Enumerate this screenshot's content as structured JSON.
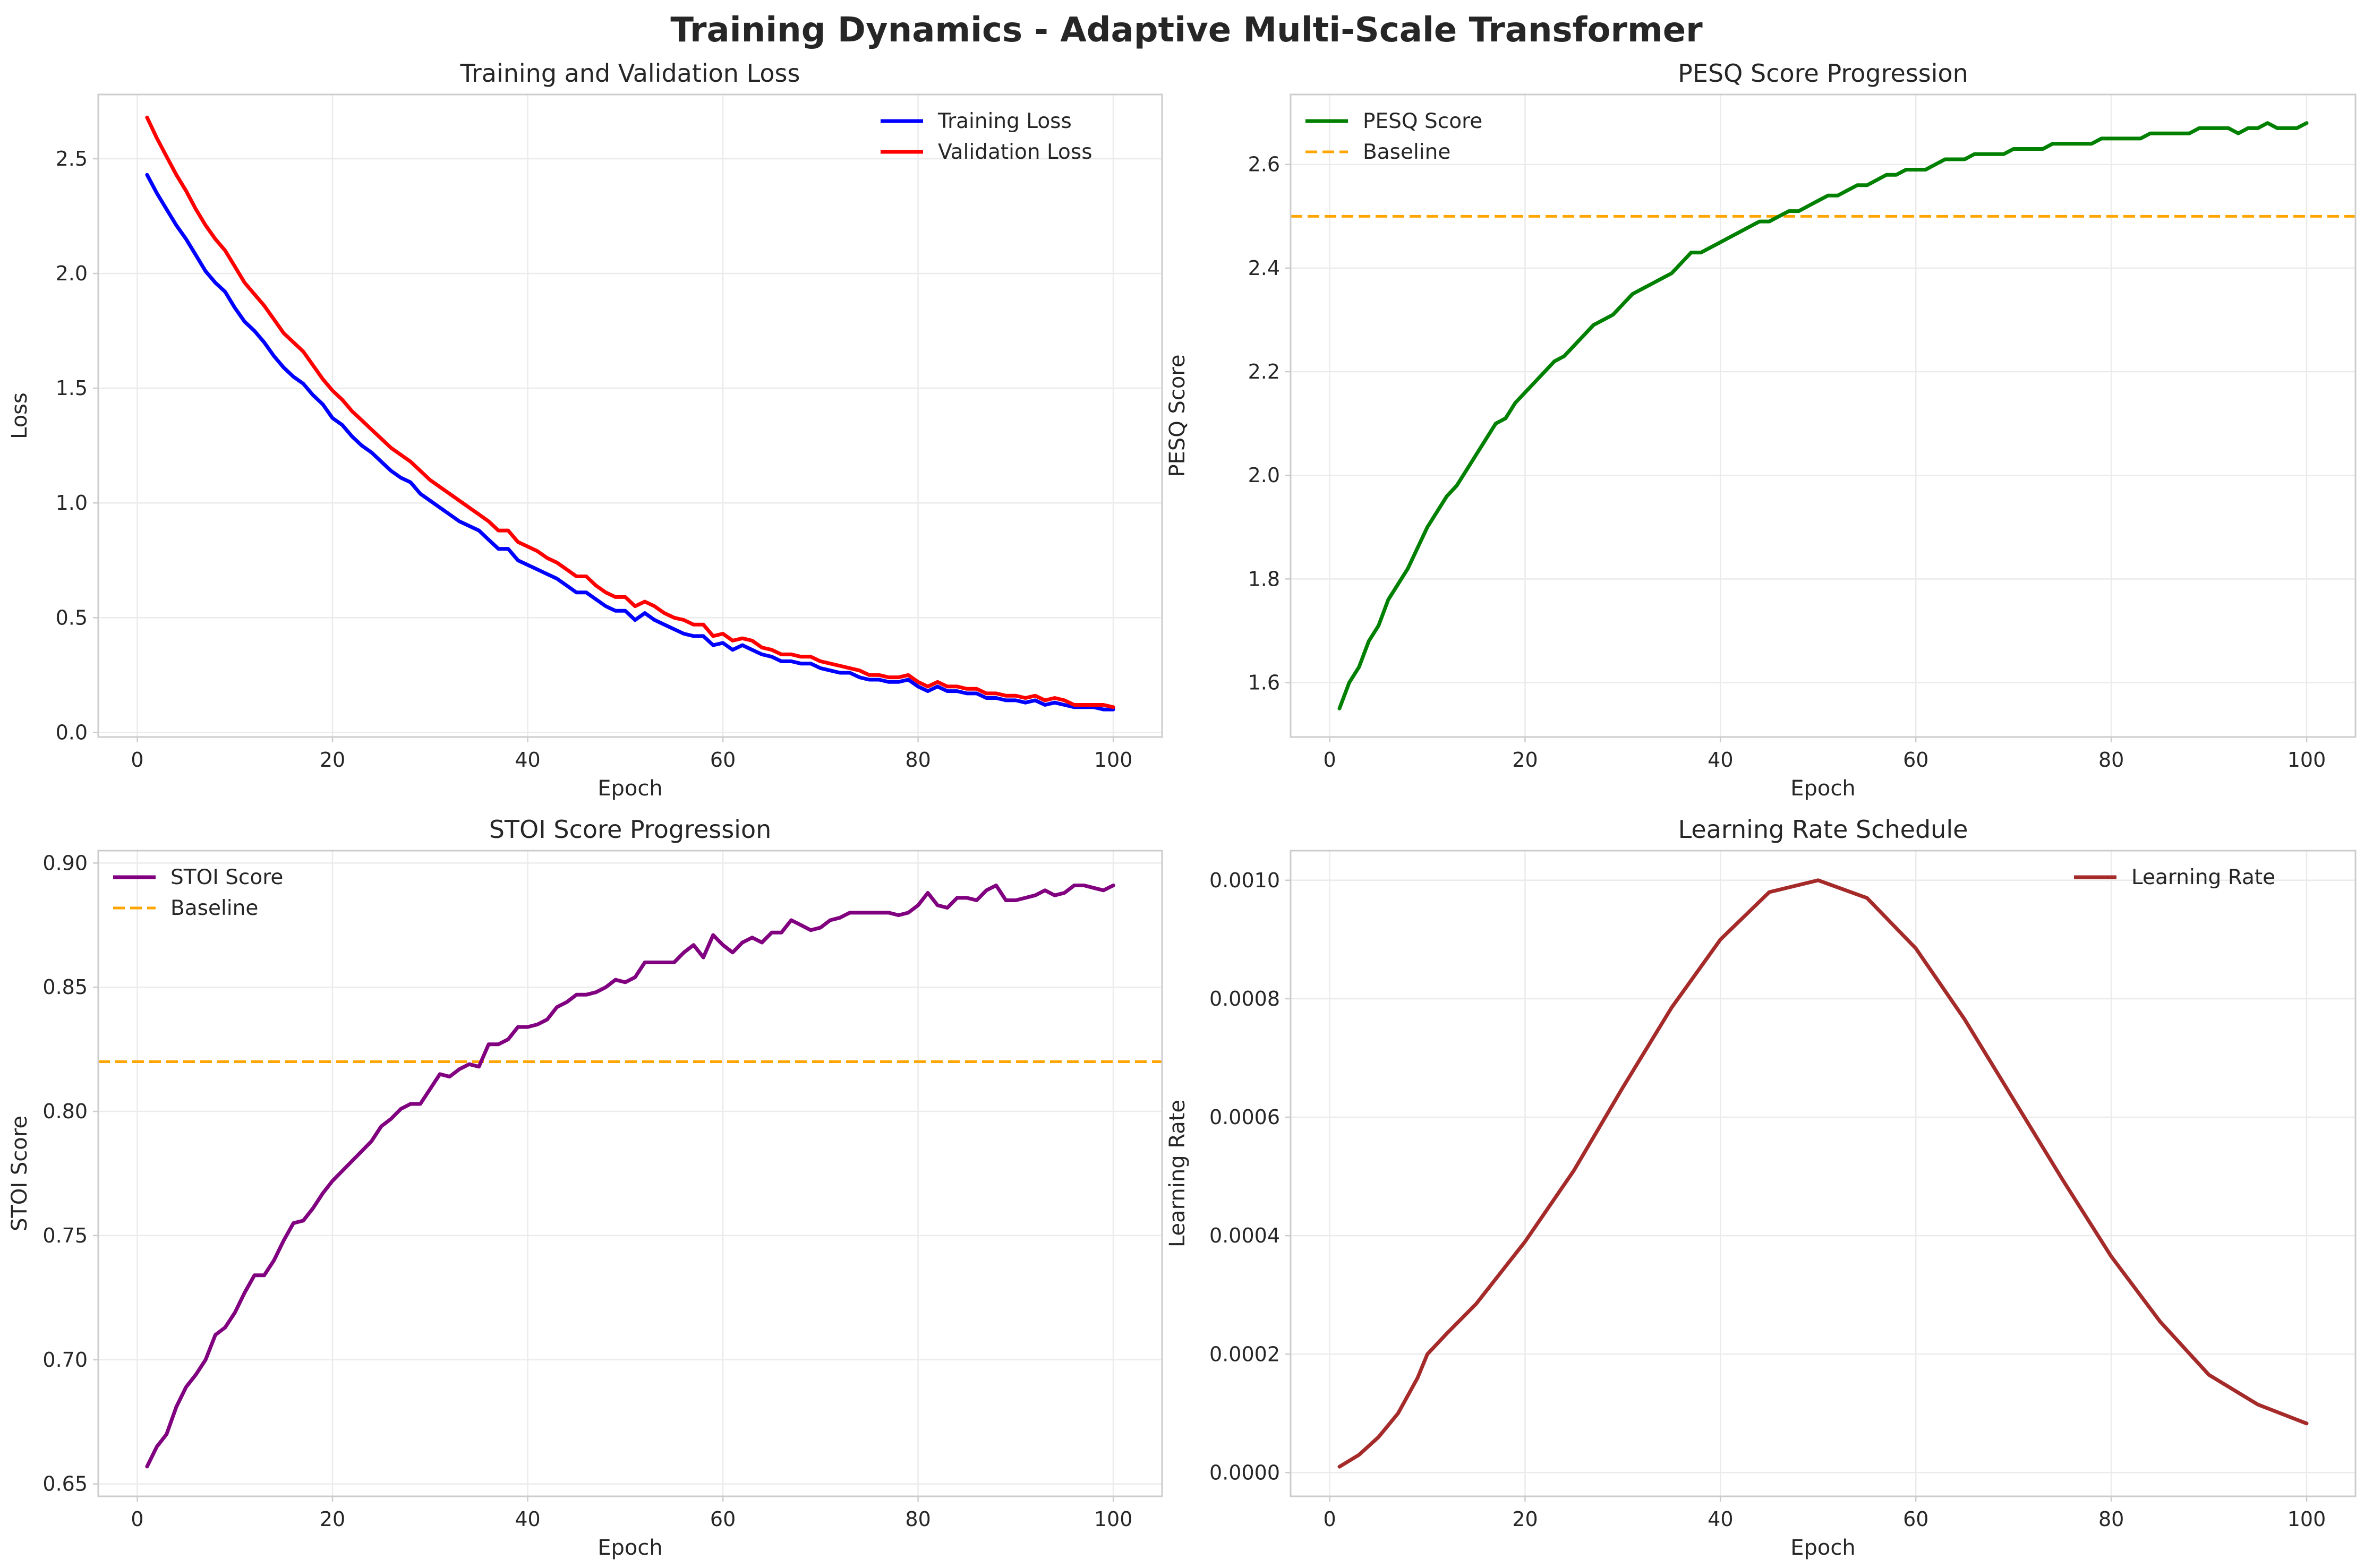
{
  "figure": {
    "suptitle": "Training Dynamics - Adaptive Multi-Scale Transformer",
    "colors": {
      "training_loss": "#0000ff",
      "validation_loss": "#ff0000",
      "pesq": "#008000",
      "stoi": "#800080",
      "baseline": "#ffa500",
      "learning_rate": "#a52a2a"
    }
  },
  "chart_data": [
    {
      "id": "loss",
      "type": "line",
      "title": "Training and Validation Loss",
      "xlabel": "Epoch",
      "ylabel": "Loss",
      "xlim": [
        -4,
        105
      ],
      "ylim": [
        -0.02,
        2.78
      ],
      "xticks": [
        0,
        20,
        40,
        60,
        80,
        100
      ],
      "yticks": [
        0.0,
        0.5,
        1.0,
        1.5,
        2.0,
        2.5
      ],
      "ytick_labels": [
        "0.0",
        "0.5",
        "1.0",
        "1.5",
        "2.0",
        "2.5"
      ],
      "legend_position": "top-right",
      "grid": true,
      "series": [
        {
          "name": "Training Loss",
          "color": "#0000ff",
          "x_start": 1,
          "x_step": 1,
          "values": [
            2.43,
            2.35,
            2.28,
            2.21,
            2.15,
            2.08,
            2.01,
            1.96,
            1.92,
            1.85,
            1.79,
            1.75,
            1.7,
            1.64,
            1.59,
            1.55,
            1.52,
            1.47,
            1.43,
            1.37,
            1.34,
            1.29,
            1.25,
            1.22,
            1.18,
            1.14,
            1.11,
            1.09,
            1.04,
            1.01,
            0.98,
            0.95,
            0.92,
            0.9,
            0.88,
            0.84,
            0.8,
            0.8,
            0.75,
            0.73,
            0.71,
            0.69,
            0.67,
            0.64,
            0.61,
            0.61,
            0.58,
            0.55,
            0.53,
            0.53,
            0.49,
            0.52,
            0.49,
            0.47,
            0.45,
            0.43,
            0.42,
            0.42,
            0.38,
            0.39,
            0.36,
            0.38,
            0.36,
            0.34,
            0.33,
            0.31,
            0.31,
            0.3,
            0.3,
            0.28,
            0.27,
            0.26,
            0.26,
            0.24,
            0.23,
            0.23,
            0.22,
            0.22,
            0.23,
            0.2,
            0.18,
            0.2,
            0.18,
            0.18,
            0.17,
            0.17,
            0.15,
            0.15,
            0.14,
            0.14,
            0.13,
            0.14,
            0.12,
            0.13,
            0.12,
            0.11,
            0.11,
            0.11,
            0.1,
            0.1
          ]
        },
        {
          "name": "Validation Loss",
          "color": "#ff0000",
          "x_start": 1,
          "x_step": 1,
          "values": [
            2.68,
            2.59,
            2.51,
            2.43,
            2.36,
            2.28,
            2.21,
            2.15,
            2.1,
            2.03,
            1.96,
            1.91,
            1.86,
            1.8,
            1.74,
            1.7,
            1.66,
            1.6,
            1.54,
            1.49,
            1.45,
            1.4,
            1.36,
            1.32,
            1.28,
            1.24,
            1.21,
            1.18,
            1.14,
            1.1,
            1.07,
            1.04,
            1.01,
            0.98,
            0.95,
            0.92,
            0.88,
            0.88,
            0.83,
            0.81,
            0.79,
            0.76,
            0.74,
            0.71,
            0.68,
            0.68,
            0.64,
            0.61,
            0.59,
            0.59,
            0.55,
            0.57,
            0.55,
            0.52,
            0.5,
            0.49,
            0.47,
            0.47,
            0.42,
            0.43,
            0.4,
            0.41,
            0.4,
            0.37,
            0.36,
            0.34,
            0.34,
            0.33,
            0.33,
            0.31,
            0.3,
            0.29,
            0.28,
            0.27,
            0.25,
            0.25,
            0.24,
            0.24,
            0.25,
            0.22,
            0.2,
            0.22,
            0.2,
            0.2,
            0.19,
            0.19,
            0.17,
            0.17,
            0.16,
            0.16,
            0.15,
            0.16,
            0.14,
            0.15,
            0.14,
            0.12,
            0.12,
            0.12,
            0.12,
            0.11
          ]
        }
      ]
    },
    {
      "id": "pesq",
      "type": "line",
      "title": "PESQ Score Progression",
      "xlabel": "Epoch",
      "ylabel": "PESQ Score",
      "xlim": [
        -4,
        105
      ],
      "ylim": [
        1.495,
        2.735
      ],
      "xticks": [
        0,
        20,
        40,
        60,
        80,
        100
      ],
      "yticks": [
        1.6,
        1.8,
        2.0,
        2.2,
        2.4,
        2.6
      ],
      "ytick_labels": [
        "1.6",
        "1.8",
        "2.0",
        "2.2",
        "2.4",
        "2.6"
      ],
      "legend_position": "top-left",
      "grid": true,
      "baseline": {
        "name": "Baseline",
        "value": 2.5,
        "color": "#ffa500"
      },
      "series": [
        {
          "name": "PESQ Score",
          "color": "#008000",
          "x_start": 1,
          "x_step": 1,
          "values": [
            1.55,
            1.6,
            1.63,
            1.68,
            1.71,
            1.76,
            1.79,
            1.82,
            1.86,
            1.9,
            1.93,
            1.96,
            1.98,
            2.01,
            2.04,
            2.07,
            2.1,
            2.11,
            2.14,
            2.16,
            2.18,
            2.2,
            2.22,
            2.23,
            2.25,
            2.27,
            2.29,
            2.3,
            2.31,
            2.33,
            2.35,
            2.36,
            2.37,
            2.38,
            2.39,
            2.41,
            2.43,
            2.43,
            2.44,
            2.45,
            2.46,
            2.47,
            2.48,
            2.49,
            2.49,
            2.5,
            2.51,
            2.51,
            2.52,
            2.53,
            2.54,
            2.54,
            2.55,
            2.56,
            2.56,
            2.57,
            2.58,
            2.58,
            2.59,
            2.59,
            2.59,
            2.6,
            2.61,
            2.61,
            2.61,
            2.62,
            2.62,
            2.62,
            2.62,
            2.63,
            2.63,
            2.63,
            2.63,
            2.64,
            2.64,
            2.64,
            2.64,
            2.64,
            2.65,
            2.65,
            2.65,
            2.65,
            2.65,
            2.66,
            2.66,
            2.66,
            2.66,
            2.66,
            2.67,
            2.67,
            2.67,
            2.67,
            2.66,
            2.67,
            2.67,
            2.68,
            2.67,
            2.67,
            2.67,
            2.68
          ]
        }
      ]
    },
    {
      "id": "stoi",
      "type": "line",
      "title": "STOI Score Progression",
      "xlabel": "Epoch",
      "ylabel": "STOI Score",
      "xlim": [
        -4,
        105
      ],
      "ylim": [
        0.645,
        0.905
      ],
      "xticks": [
        0,
        20,
        40,
        60,
        80,
        100
      ],
      "yticks": [
        0.65,
        0.7,
        0.75,
        0.8,
        0.85,
        0.9
      ],
      "ytick_labels": [
        "0.65",
        "0.70",
        "0.75",
        "0.80",
        "0.85",
        "0.90"
      ],
      "legend_position": "top-left",
      "grid": true,
      "baseline": {
        "name": "Baseline",
        "value": 0.82,
        "color": "#ffa500"
      },
      "series": [
        {
          "name": "STOI Score",
          "color": "#800080",
          "x_start": 1,
          "x_step": 1,
          "values": [
            0.657,
            0.665,
            0.67,
            0.681,
            0.689,
            0.694,
            0.7,
            0.71,
            0.713,
            0.719,
            0.727,
            0.734,
            0.734,
            0.74,
            0.748,
            0.755,
            0.756,
            0.761,
            0.767,
            0.772,
            0.776,
            0.78,
            0.784,
            0.788,
            0.794,
            0.797,
            0.801,
            0.803,
            0.803,
            0.809,
            0.815,
            0.814,
            0.817,
            0.819,
            0.818,
            0.827,
            0.827,
            0.829,
            0.834,
            0.834,
            0.835,
            0.837,
            0.842,
            0.844,
            0.847,
            0.847,
            0.848,
            0.85,
            0.853,
            0.852,
            0.854,
            0.86,
            0.86,
            0.86,
            0.86,
            0.864,
            0.867,
            0.862,
            0.871,
            0.867,
            0.864,
            0.868,
            0.87,
            0.868,
            0.872,
            0.872,
            0.877,
            0.875,
            0.873,
            0.874,
            0.877,
            0.878,
            0.88,
            0.88,
            0.88,
            0.88,
            0.88,
            0.879,
            0.88,
            0.883,
            0.888,
            0.883,
            0.882,
            0.886,
            0.886,
            0.885,
            0.889,
            0.891,
            0.885,
            0.885,
            0.886,
            0.887,
            0.889,
            0.887,
            0.888,
            0.891,
            0.891,
            0.89,
            0.889,
            0.891
          ]
        }
      ]
    },
    {
      "id": "lr",
      "type": "line",
      "title": "Learning Rate Schedule",
      "xlabel": "Epoch",
      "ylabel": "Learning Rate",
      "xlim": [
        -4,
        105
      ],
      "ylim": [
        -4e-05,
        0.00105
      ],
      "xticks": [
        0,
        20,
        40,
        60,
        80,
        100
      ],
      "yticks": [
        0.0,
        0.0002,
        0.0004,
        0.0006,
        0.0008,
        0.001
      ],
      "ytick_labels": [
        "0.0000",
        "0.0002",
        "0.0004",
        "0.0006",
        "0.0008",
        "0.0010"
      ],
      "legend_position": "top-right",
      "grid": true,
      "series": [
        {
          "name": "Learning Rate",
          "color": "#a52a2a",
          "x": [
            1,
            3,
            5,
            7,
            9,
            10,
            12,
            15,
            20,
            25,
            30,
            35,
            40,
            45,
            50,
            55,
            60,
            65,
            70,
            75,
            80,
            85,
            90,
            95,
            100
          ],
          "values": [
            1e-05,
            3e-05,
            6e-05,
            0.0001,
            0.00016,
            0.0002,
            0.000235,
            0.000285,
            0.00039,
            0.00051,
            0.00065,
            0.000785,
            0.0009,
            0.00098,
            0.001,
            0.00097,
            0.000885,
            0.000765,
            0.00063,
            0.000495,
            0.000365,
            0.000255,
            0.000165,
            0.000115,
            8.3e-05
          ]
        }
      ]
    }
  ]
}
